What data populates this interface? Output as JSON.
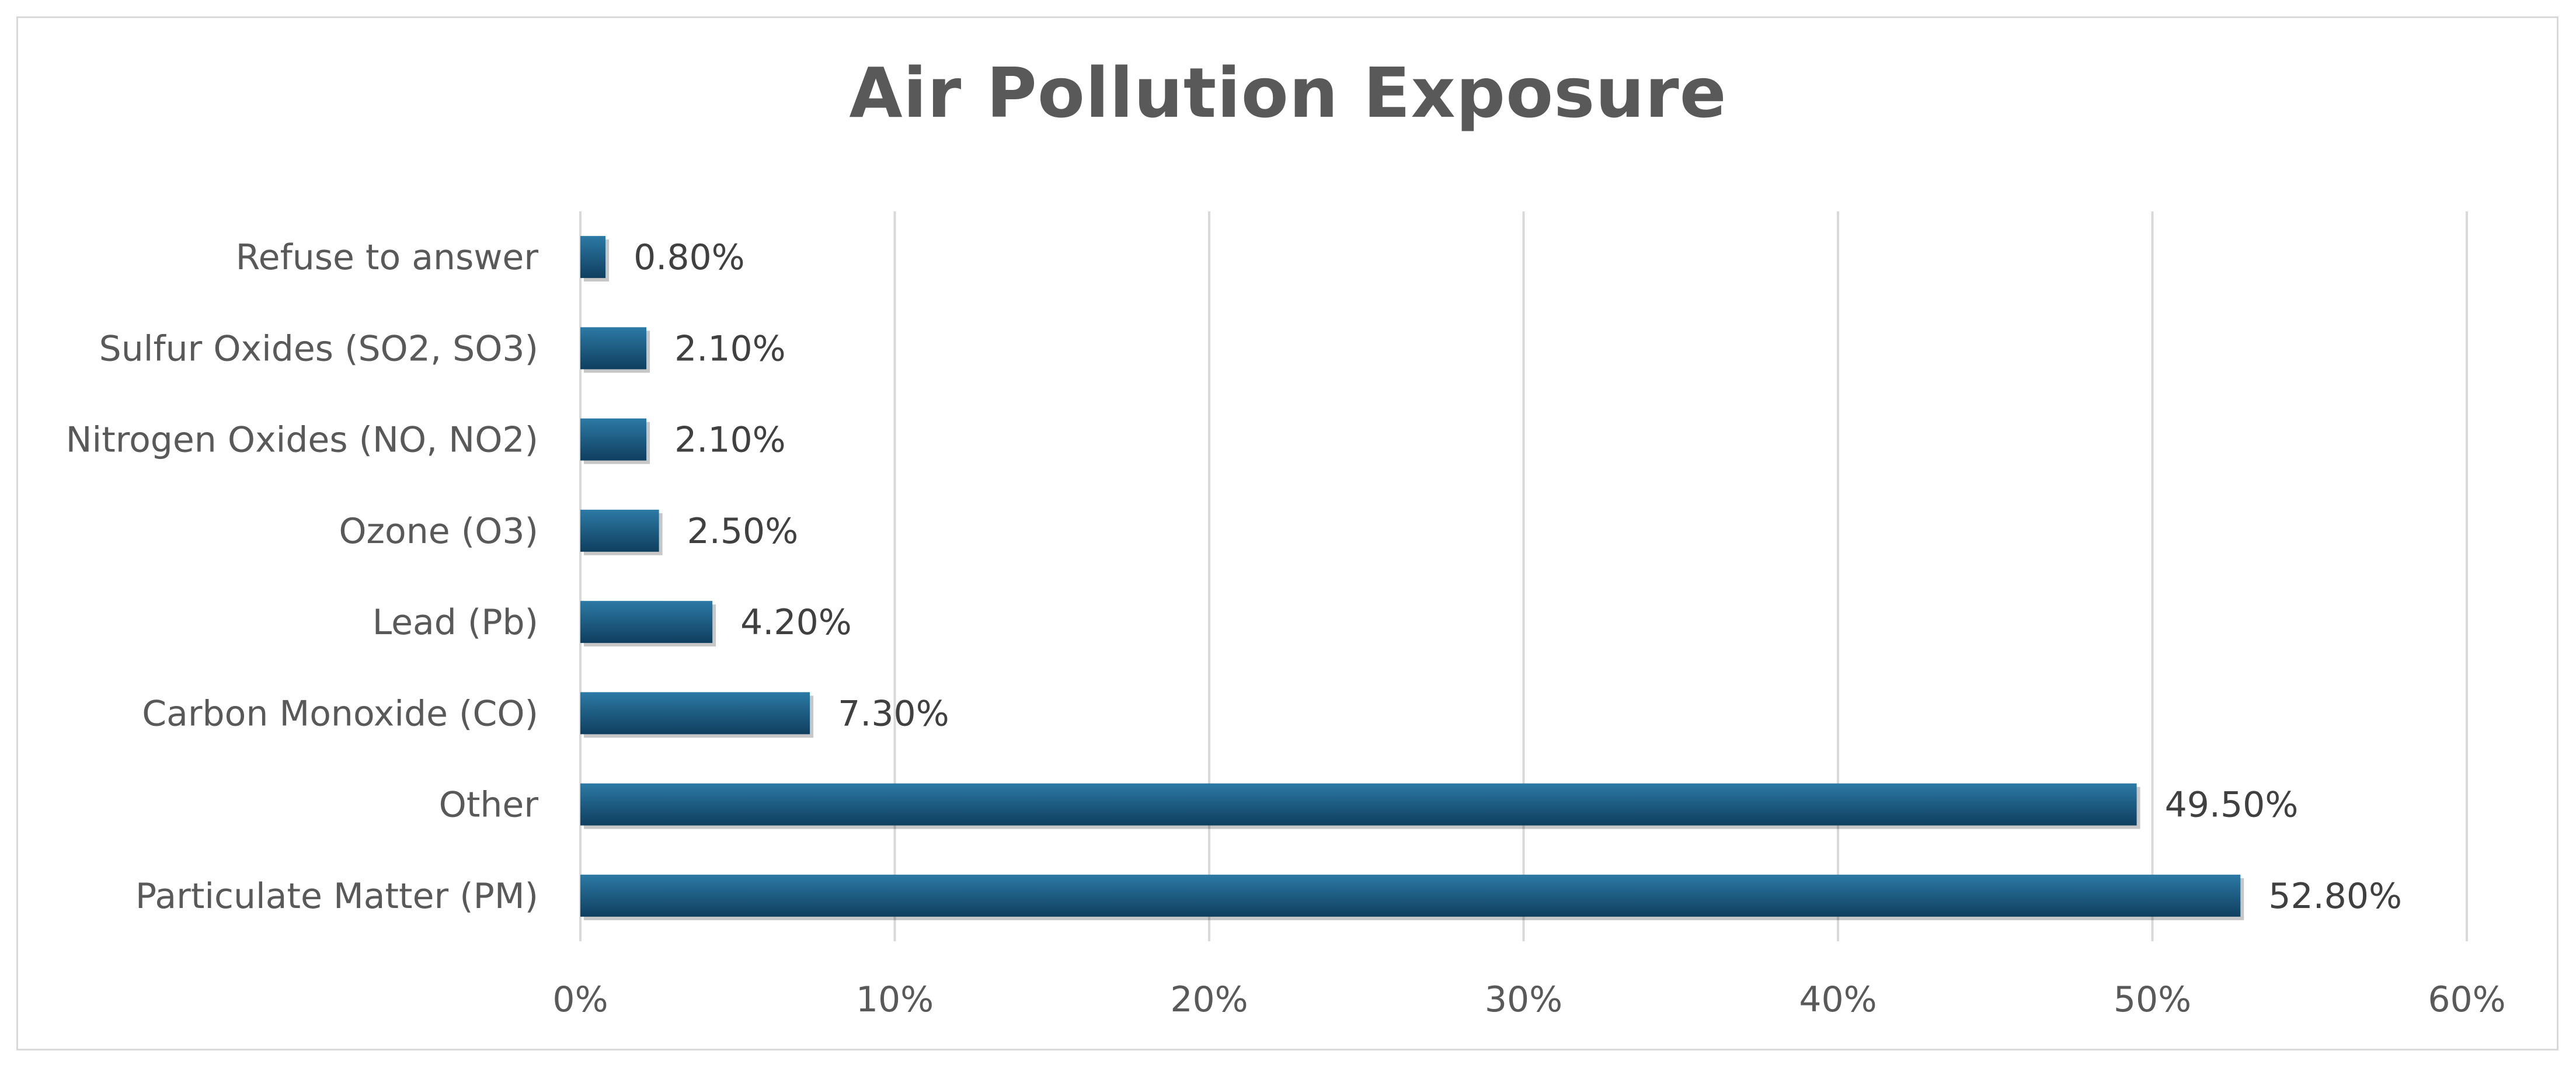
{
  "chart_data": {
    "type": "bar",
    "orientation": "horizontal",
    "title": "Air Pollution Exposure",
    "categories": [
      "Particulate Matter (PM)",
      "Other",
      "Carbon Monoxide (CO)",
      "Lead (Pb)",
      "Ozone (O3)",
      "Nitrogen Oxides (NO, NO2)",
      "Sulfur Oxides (SO2, SO3)",
      "Refuse to answer"
    ],
    "values": [
      52.8,
      49.5,
      7.3,
      4.2,
      2.5,
      2.1,
      2.1,
      0.8
    ],
    "value_labels": [
      "52.80%",
      "49.50%",
      "7.30%",
      "4.20%",
      "2.50%",
      "2.10%",
      "2.10%",
      "0.80%"
    ],
    "xlim": [
      0,
      60
    ],
    "x_ticks": [
      0,
      10,
      20,
      30,
      40,
      50,
      60
    ],
    "x_tick_labels": [
      "0%",
      "10%",
      "20%",
      "30%",
      "40%",
      "50%",
      "60%"
    ],
    "xlabel": "",
    "ylabel": "",
    "grid": "vertical",
    "legend": "none",
    "bar_color": "#1f5f85",
    "grid_color": "#d9d9d9"
  }
}
